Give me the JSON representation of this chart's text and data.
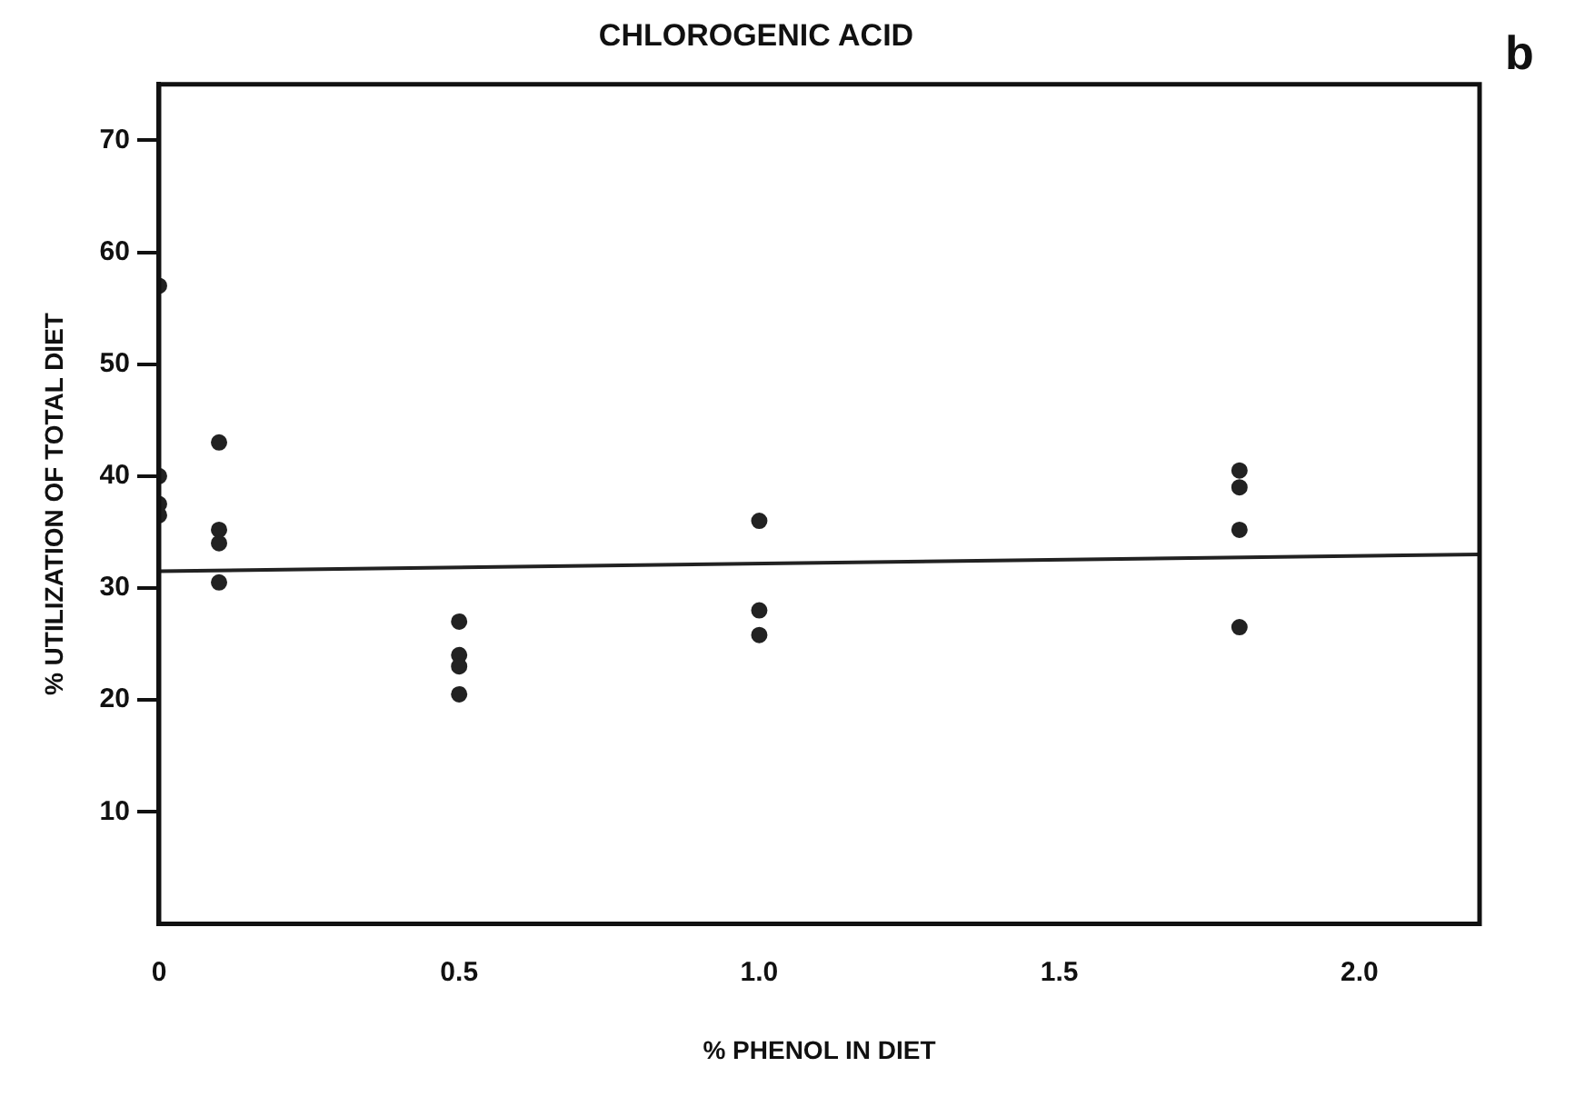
{
  "chart_data": {
    "type": "scatter",
    "title": "CHLOROGENIC ACID",
    "xlabel": "% PHENOL IN DIET",
    "ylabel": "% UTILIZATION OF TOTAL DIET",
    "annotations": [
      "b"
    ],
    "xlim": [
      0,
      2.2
    ],
    "xticks": [
      {
        "value": 0,
        "label": "0"
      },
      {
        "value": 0.5,
        "label": "0.5"
      },
      {
        "value": 1,
        "label": "1.0"
      },
      {
        "value": 1.5,
        "label": "1.5"
      },
      {
        "value": 2,
        "label": "2.0"
      }
    ],
    "ylim": [
      0,
      75
    ],
    "yticks": [
      10,
      20,
      30,
      40,
      50,
      60,
      70
    ],
    "grid": false,
    "legend": false,
    "marker": "circle",
    "series": [
      {
        "color": "#222222",
        "x": [
          0,
          0,
          0,
          0,
          0.1,
          0.1,
          0.1,
          0.1,
          0.5,
          0.5,
          0.5,
          0.5,
          1,
          1,
          1,
          1.8,
          1.8,
          1.8,
          1.8
        ],
        "values": [
          57,
          40,
          37.5,
          36.5,
          43,
          35.2,
          34,
          30.5,
          27,
          24,
          23,
          20.5,
          36,
          28,
          25.8,
          40.5,
          39,
          35.2,
          26.5
        ]
      },
      {
        "type": "line",
        "color": "#222222",
        "marker": "none",
        "x": [
          0,
          2.2
        ],
        "values": [
          31.5,
          33
        ]
      }
    ]
  }
}
